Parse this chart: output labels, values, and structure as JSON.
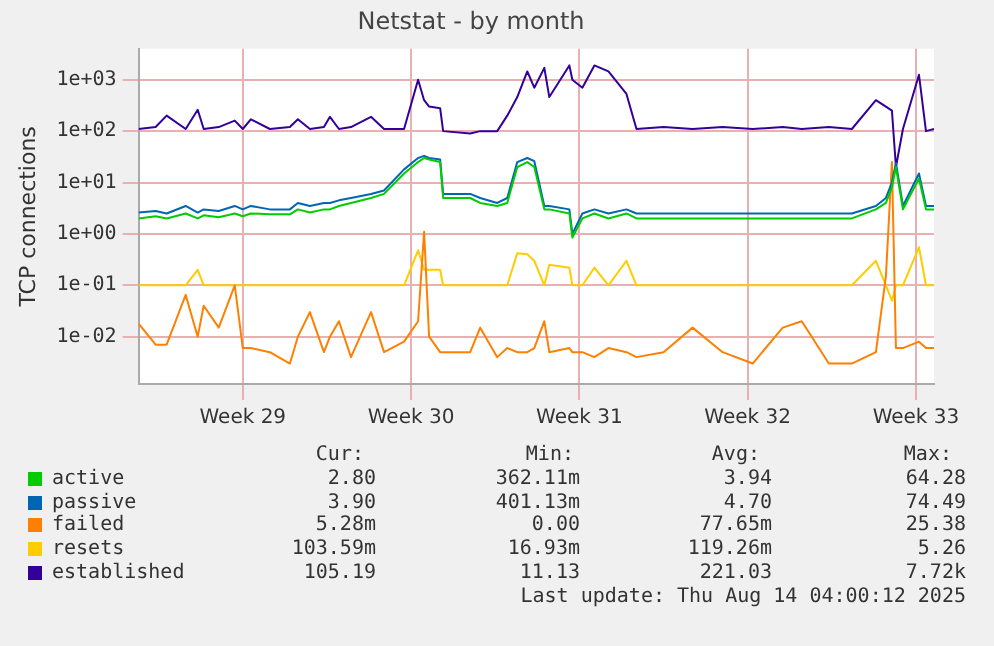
{
  "chart_data": {
    "type": "line",
    "title": "Netstat - by month",
    "ylabel": "TCP connections",
    "log": "y",
    "grid": true,
    "legend": "bottom",
    "marker": "none",
    "line_style": "solid",
    "x": [
      "2025-07-09T16:00",
      "2025-07-10T09:00",
      "2025-07-10T20:00",
      "2025-07-11T15:00",
      "2025-07-12T03:00",
      "2025-07-12T09:00",
      "2025-07-13T00:00",
      "2025-07-13T16:00",
      "2025-07-14T00:00",
      "2025-07-14T08:00",
      "2025-07-15T03:00",
      "2025-07-15T23:00",
      "2025-07-16T07:00",
      "2025-07-16T19:00",
      "2025-07-17T09:00",
      "2025-07-17T15:00",
      "2025-07-18T00:00",
      "2025-07-18T12:00",
      "2025-07-19T08:00",
      "2025-07-19T21:00",
      "2025-07-20T17:00",
      "2025-07-21T07:00",
      "2025-07-21T13:00",
      "2025-07-21T18:00",
      "2025-07-22T05:00",
      "2025-07-22T08:00",
      "2025-07-23T11:00",
      "2025-07-23T21:00",
      "2025-07-24T14:00",
      "2025-07-25T00:00",
      "2025-07-25T10:00",
      "2025-07-25T20:00",
      "2025-07-26T03:00",
      "2025-07-26T13:00",
      "2025-07-26T18:00",
      "2025-07-27T14:00",
      "2025-07-27T17:00",
      "2025-07-28T03:00",
      "2025-07-28T15:00",
      "2025-07-29T05:00",
      "2025-07-29T23:00",
      "2025-07-30T09:00",
      "2025-07-31T12:00",
      "2025-08-01T17:00",
      "2025-08-02T23:00",
      "2025-08-04T05:00",
      "2025-08-05T11:00",
      "2025-08-06T06:00",
      "2025-08-07T09:00",
      "2025-08-08T08:00",
      "2025-08-09T08:00",
      "2025-08-09T18:00",
      "2025-08-10T00:00",
      "2025-08-10T04:00",
      "2025-08-10T11:00",
      "2025-08-11T03:00",
      "2025-08-11T10:00",
      "2025-08-11T18:00"
    ],
    "xlim": [
      "2025-07-09T16:00",
      "2025-08-11T18:00"
    ],
    "xticks": [
      {
        "value": "2025-07-14",
        "label": "Week 29"
      },
      {
        "value": "2025-07-21",
        "label": "Week 30"
      },
      {
        "value": "2025-07-28",
        "label": "Week 31"
      },
      {
        "value": "2025-08-04",
        "label": "Week 32"
      },
      {
        "value": "2025-08-11",
        "label": "Week 33"
      }
    ],
    "ylim": [
      0.0012,
      4000
    ],
    "yticks": [
      {
        "value": 0.01,
        "label": "1e-02"
      },
      {
        "value": 0.1,
        "label": "1e-01"
      },
      {
        "value": 1,
        "label": "1e+00"
      },
      {
        "value": 10,
        "label": "1e+01"
      },
      {
        "value": 100,
        "label": "1e+02"
      },
      {
        "value": 1000,
        "label": "1e+03"
      }
    ],
    "series": [
      {
        "name": "active",
        "color": "#00cc00",
        "values": [
          2,
          2.2,
          2,
          2.5,
          2,
          2.3,
          2.1,
          2.5,
          2.2,
          2.5,
          2.4,
          2.4,
          3,
          2.6,
          3,
          3,
          3.5,
          4,
          5,
          6,
          15,
          25,
          30,
          28,
          25,
          5,
          5,
          4,
          3.5,
          4,
          20,
          25,
          20,
          3,
          3,
          2.5,
          0.85,
          2,
          2.5,
          2,
          2.5,
          2,
          2,
          2,
          2,
          2,
          2,
          2,
          2,
          2,
          3,
          4,
          8,
          20,
          3,
          12,
          3,
          3
        ]
      },
      {
        "name": "passive",
        "color": "#0066b3",
        "values": [
          2.6,
          2.8,
          2.5,
          3.5,
          2.6,
          3,
          2.8,
          3.5,
          3,
          3.5,
          3,
          3,
          4,
          3.5,
          4,
          4,
          4.5,
          5,
          6,
          7,
          18,
          30,
          33,
          30,
          28,
          6,
          6,
          5,
          4,
          5,
          25,
          30,
          26,
          3.5,
          3.5,
          3,
          1,
          2.5,
          3,
          2.5,
          3,
          2.5,
          2.5,
          2.5,
          2.5,
          2.5,
          2.5,
          2.5,
          2.5,
          2.5,
          3.5,
          5,
          10,
          24,
          3.5,
          15,
          3.5,
          3.5
        ]
      },
      {
        "name": "failed",
        "color": "#ff8000",
        "values": [
          0.018,
          0.007,
          0.007,
          0.065,
          0.01,
          0.04,
          0.015,
          0.1,
          0.006,
          0.006,
          0.005,
          0.003,
          0.01,
          0.03,
          0.005,
          0.01,
          0.02,
          0.004,
          0.03,
          0.005,
          0.008,
          0.02,
          1.1,
          0.01,
          0.005,
          0.005,
          0.005,
          0.015,
          0.004,
          0.006,
          0.005,
          0.005,
          0.006,
          0.02,
          0.005,
          0.006,
          0.005,
          0.005,
          0.004,
          0.006,
          0.005,
          0.004,
          0.005,
          0.015,
          0.005,
          0.003,
          0.015,
          0.02,
          0.003,
          0.003,
          0.005,
          0.15,
          25,
          0.006,
          0.006,
          0.008,
          0.006,
          0.006
        ]
      },
      {
        "name": "resets",
        "color": "#ffcc00",
        "values": [
          0.1,
          0.1,
          0.1,
          0.1,
          0.2,
          0.1,
          0.1,
          0.1,
          0.1,
          0.1,
          0.1,
          0.1,
          0.1,
          0.1,
          0.1,
          0.1,
          0.1,
          0.1,
          0.1,
          0.1,
          0.1,
          0.48,
          0.2,
          0.2,
          0.2,
          0.1,
          0.1,
          0.1,
          0.1,
          0.1,
          0.42,
          0.4,
          0.3,
          0.1,
          0.25,
          0.22,
          0.1,
          0.1,
          0.22,
          0.1,
          0.3,
          0.1,
          0.1,
          0.1,
          0.1,
          0.1,
          0.1,
          0.1,
          0.1,
          0.1,
          0.3,
          0.1,
          0.05,
          0.1,
          0.1,
          0.55,
          0.1,
          0.1
        ]
      },
      {
        "name": "established",
        "color": "#330099",
        "values": [
          110,
          120,
          200,
          110,
          260,
          110,
          120,
          160,
          110,
          170,
          110,
          120,
          170,
          110,
          120,
          190,
          110,
          120,
          190,
          110,
          110,
          1000,
          400,
          300,
          280,
          100,
          90,
          100,
          100,
          200,
          460,
          1450,
          700,
          1700,
          460,
          1900,
          1000,
          700,
          1900,
          1450,
          530,
          110,
          120,
          110,
          120,
          110,
          120,
          110,
          120,
          110,
          400,
          300,
          250,
          20,
          110,
          1250,
          100,
          110
        ]
      }
    ],
    "annotations": [
      "Cur:",
      "Min:",
      "Avg:",
      "Max:",
      "2.80",
      "362.11m",
      "3.94",
      "64.28",
      "3.90",
      "401.13m",
      "4.70",
      "74.49",
      "5.28m",
      "0.00",
      "77.65m",
      "25.38",
      "103.59m",
      "16.93m",
      "119.26m",
      "5.26",
      "105.19",
      "11.13",
      "221.03",
      "7.72k",
      "Last update: Thu Aug 14 04:00:12 2025"
    ]
  }
}
